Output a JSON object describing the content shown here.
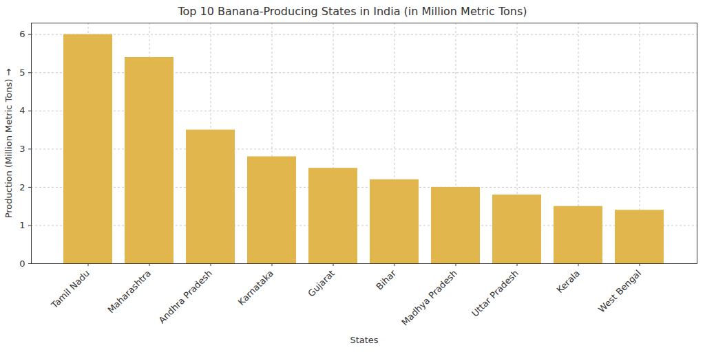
{
  "chart_data": {
    "type": "bar",
    "title": "Top 10 Banana-Producing States in India (in Million Metric Tons)",
    "x_label": "States",
    "y_label": "Production (Million Metric Tons)",
    "categories": [
      "Tamil Nadu",
      "Maharashtra",
      "Andhra Pradesh",
      "Karnataka",
      "Gujarat",
      "Bihar",
      "Madhya Pradesh",
      "Uttar Pradesh",
      "Kerala",
      "West Bengal"
    ],
    "values": [
      6.0,
      5.4,
      3.5,
      2.8,
      2.5,
      2.2,
      2.0,
      1.8,
      1.5,
      1.4
    ],
    "color": "#e1b74d",
    "ylim": [
      0,
      6.3
    ],
    "yticks": [
      0,
      1,
      2,
      3,
      4,
      5,
      6
    ],
    "grid": true
  }
}
